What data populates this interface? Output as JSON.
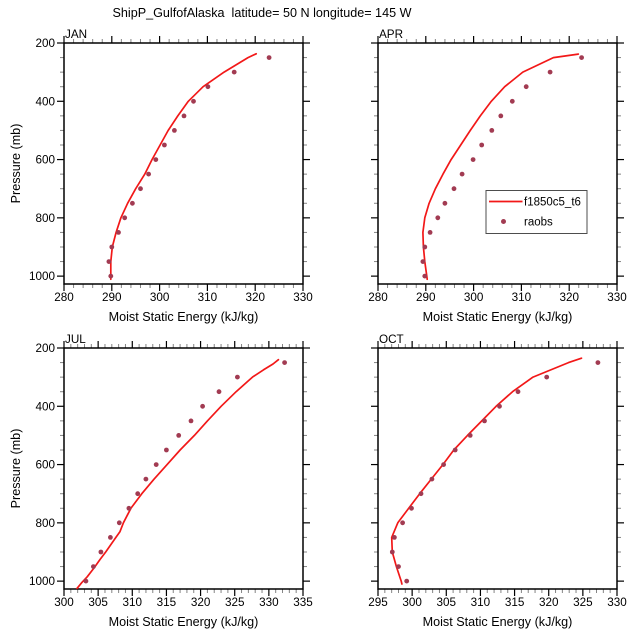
{
  "title": "ShipP_GulfofAlaska  latitude= 50 N longitude= 145 W",
  "axes": {
    "xlabel": "Moist Static Energy (kJ/kg)",
    "ylabel": "Pressure (mb)"
  },
  "legend": {
    "entries": [
      {
        "label": "f1850c5_t6",
        "type": "line"
      },
      {
        "label": "raobs",
        "type": "marker"
      }
    ],
    "position": "inside APR panel, lower right"
  },
  "colors": {
    "model_line": "#f21818",
    "obs_dot": "#a23b52",
    "axis": "#000000",
    "minor_tick": "#848484",
    "legend_border": "#4d4d4d",
    "background": "#ffffff"
  },
  "chart_data": [
    {
      "label": "JAN",
      "type": "line",
      "xlabel": "Moist Static Energy (kJ/kg)",
      "ylabel": "Pressure (mb)",
      "xlim": [
        280,
        330
      ],
      "xticks": [
        280,
        290,
        300,
        310,
        320,
        330
      ],
      "x_minor_step": 2,
      "ylim": [
        200,
        1027
      ],
      "yticks": [
        200,
        400,
        600,
        800,
        1000
      ],
      "y_minor_step": 50,
      "y_inverted": true,
      "grid": false,
      "series": [
        {
          "name": "f1850c5_t6",
          "type": "line",
          "pressure_mb": [
            1011,
            1000,
            950,
            900,
            850,
            800,
            750,
            700,
            650,
            600,
            550,
            500,
            450,
            400,
            350,
            300,
            250,
            237
          ],
          "mse_kjkg": [
            289.8,
            289.8,
            289.8,
            290.1,
            290.9,
            291.9,
            293.3,
            295.0,
            296.9,
            298.4,
            300.1,
            301.8,
            303.8,
            306.0,
            309.1,
            313.5,
            318.5,
            320.2
          ]
        },
        {
          "name": "raobs",
          "type": "scatter",
          "pressure_mb": [
            1000,
            950,
            900,
            850,
            800,
            750,
            700,
            650,
            600,
            550,
            500,
            450,
            400,
            350,
            300,
            250
          ],
          "mse_kjkg": [
            289.8,
            289.4,
            290.0,
            291.4,
            292.7,
            294.3,
            296.0,
            297.7,
            299.2,
            301.0,
            303.1,
            305.1,
            307.1,
            310.1,
            315.6,
            322.9
          ]
        }
      ]
    },
    {
      "label": "APR",
      "type": "line",
      "xlabel": "Moist Static Energy (kJ/kg)",
      "ylabel": "Pressure (mb)",
      "xlim": [
        280,
        330
      ],
      "xticks": [
        280,
        290,
        300,
        310,
        320,
        330
      ],
      "x_minor_step": 2,
      "ylim": [
        200,
        1027
      ],
      "yticks": [
        200,
        400,
        600,
        800,
        1000
      ],
      "y_minor_step": 50,
      "y_inverted": true,
      "grid": false,
      "series": [
        {
          "name": "f1850c5_t6",
          "type": "line",
          "pressure_mb": [
            1011,
            1000,
            950,
            900,
            850,
            800,
            750,
            700,
            650,
            600,
            550,
            500,
            450,
            400,
            350,
            300,
            250,
            238
          ],
          "mse_kjkg": [
            290.3,
            290.2,
            289.8,
            289.5,
            289.4,
            289.8,
            290.7,
            292.0,
            293.6,
            295.3,
            297.3,
            299.3,
            301.4,
            303.7,
            306.5,
            310.3,
            316.7,
            321.9
          ]
        },
        {
          "name": "raobs",
          "type": "scatter",
          "pressure_mb": [
            1000,
            950,
            900,
            850,
            800,
            750,
            700,
            650,
            600,
            550,
            500,
            450,
            400,
            350,
            300,
            250
          ],
          "mse_kjkg": [
            289.8,
            289.4,
            289.8,
            290.9,
            292.5,
            294.0,
            295.9,
            297.6,
            299.9,
            301.7,
            303.8,
            305.7,
            308.1,
            311.0,
            316.0,
            322.6
          ]
        }
      ]
    },
    {
      "label": "JUL",
      "type": "line",
      "xlabel": "Moist Static Energy (kJ/kg)",
      "ylabel": "Pressure (mb)",
      "xlim": [
        300,
        335
      ],
      "xticks": [
        300,
        305,
        310,
        315,
        320,
        325,
        330,
        335
      ],
      "x_minor_step": 1,
      "ylim": [
        200,
        1027
      ],
      "yticks": [
        200,
        400,
        600,
        800,
        1000
      ],
      "y_minor_step": 50,
      "y_inverted": true,
      "grid": false,
      "series": [
        {
          "name": "f1850c5_t6",
          "type": "line",
          "pressure_mb": [
            1025,
            1005,
            985,
            955,
            925,
            900,
            850,
            830,
            800,
            750,
            700,
            650,
            600,
            550,
            500,
            450,
            400,
            350,
            300,
            275,
            255,
            240
          ],
          "mse_kjkg": [
            301.9,
            302.6,
            303.4,
            304.4,
            305.3,
            306.1,
            307.6,
            308.2,
            308.7,
            309.8,
            311.4,
            313.2,
            315.1,
            317.0,
            319.1,
            321.0,
            323.0,
            325.2,
            327.6,
            329.2,
            330.6,
            331.4
          ]
        },
        {
          "name": "raobs",
          "type": "scatter",
          "pressure_mb": [
            1000,
            950,
            900,
            850,
            800,
            750,
            700,
            650,
            600,
            550,
            500,
            450,
            400,
            350,
            300,
            250
          ],
          "mse_kjkg": [
            303.2,
            304.3,
            305.4,
            306.8,
            308.1,
            309.5,
            310.8,
            312.0,
            313.5,
            315.0,
            316.8,
            318.6,
            320.3,
            322.7,
            325.4,
            332.3
          ]
        }
      ]
    },
    {
      "label": "OCT",
      "type": "line",
      "xlabel": "Moist Static Energy (kJ/kg)",
      "ylabel": "Pressure (mb)",
      "xlim": [
        295,
        330
      ],
      "xticks": [
        295,
        300,
        305,
        310,
        315,
        320,
        325,
        330
      ],
      "x_minor_step": 1,
      "ylim": [
        200,
        1027
      ],
      "yticks": [
        200,
        400,
        600,
        800,
        1000
      ],
      "y_minor_step": 50,
      "y_inverted": true,
      "grid": false,
      "series": [
        {
          "name": "f1850c5_t6",
          "type": "line",
          "pressure_mb": [
            1010,
            1000,
            950,
            900,
            850,
            800,
            750,
            700,
            650,
            600,
            550,
            500,
            450,
            400,
            350,
            300,
            250,
            235
          ],
          "mse_kjkg": [
            298.5,
            298.4,
            297.7,
            297.1,
            297.0,
            297.9,
            299.5,
            301.1,
            302.8,
            304.5,
            306.1,
            308.1,
            310.2,
            312.3,
            314.7,
            317.7,
            322.9,
            324.8
          ]
        },
        {
          "name": "raobs",
          "type": "scatter",
          "pressure_mb": [
            1000,
            950,
            900,
            850,
            800,
            750,
            700,
            650,
            600,
            550,
            500,
            450,
            400,
            350,
            300,
            250
          ],
          "mse_kjkg": [
            299.2,
            298.0,
            297.1,
            297.4,
            298.6,
            299.9,
            301.3,
            302.9,
            304.6,
            306.3,
            308.5,
            310.6,
            312.8,
            315.5,
            319.7,
            327.2
          ]
        }
      ]
    }
  ]
}
